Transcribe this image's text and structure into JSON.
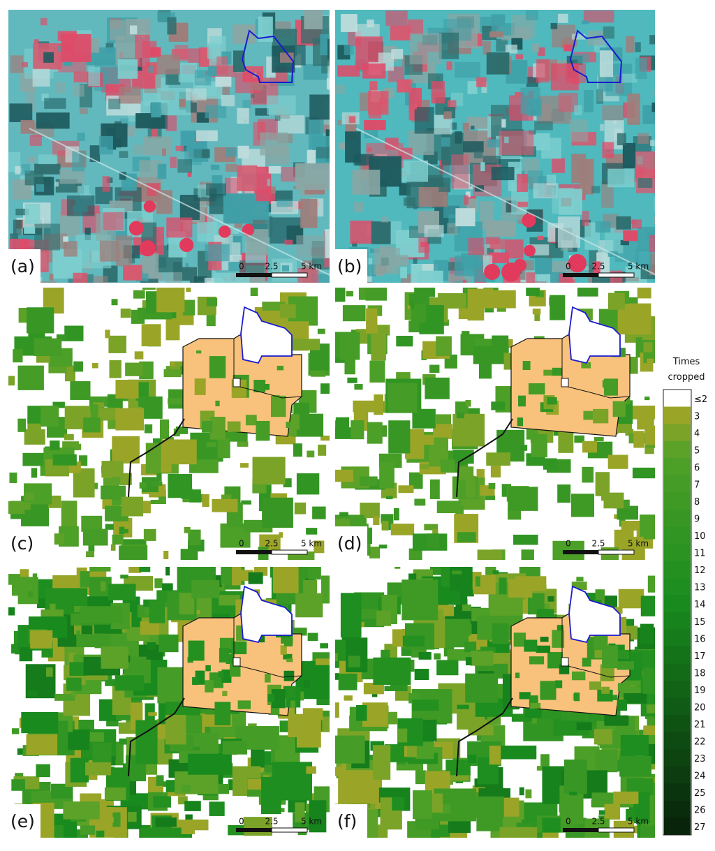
{
  "panels": [
    {
      "label": "(a)",
      "scale": [
        "0",
        "2.5",
        "5 km"
      ]
    },
    {
      "label": "(b)",
      "scale": [
        "0",
        "2.5",
        "5 km"
      ]
    },
    {
      "label": "(c)",
      "scale": [
        "0",
        "2.5",
        "5 km"
      ]
    },
    {
      "label": "(d)",
      "scale": [
        "0",
        "2.5",
        "5 km"
      ]
    },
    {
      "label": "(e)",
      "scale": [
        "0",
        "2.5",
        "5 km"
      ]
    },
    {
      "label": "(f)",
      "scale": [
        "0",
        "2.5",
        "5 km"
      ]
    }
  ],
  "legend": {
    "title": "Times cropped",
    "labels": [
      "≤2",
      "3",
      "4",
      "5",
      "6",
      "7",
      "8",
      "9",
      "10",
      "11",
      "12",
      "13",
      "14",
      "15",
      "16",
      "17",
      "18",
      "19",
      "20",
      "21",
      "22",
      "23",
      "24",
      "25",
      "26",
      "27"
    ]
  }
}
